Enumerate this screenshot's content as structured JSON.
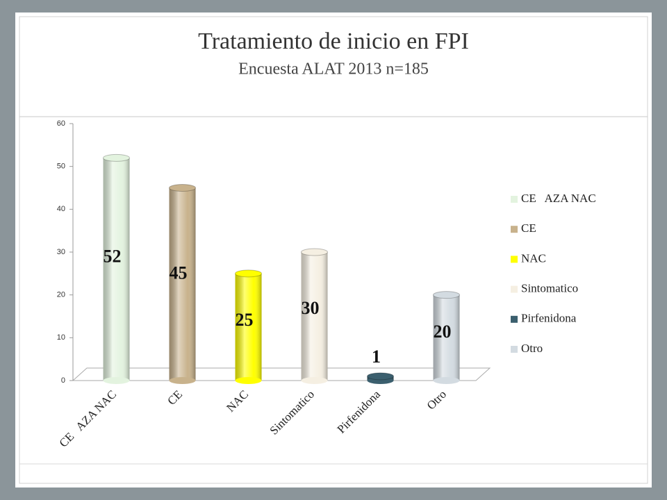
{
  "chart_data": {
    "type": "bar",
    "title": "Tratamiento de inicio en FPI",
    "subtitle": "Encuesta ALAT 2013 n=185",
    "categories": [
      "CE   AZA NAC",
      "CE",
      "NAC",
      "Sintomatico",
      "Pirfenidona",
      "Otro"
    ],
    "values": [
      52,
      45,
      25,
      30,
      1,
      20
    ],
    "colors": [
      "#e3f3df",
      "#c8b28c",
      "#ffff00",
      "#f5efe2",
      "#3b5f6e",
      "#d3dbe1"
    ],
    "ylim": [
      0,
      60
    ],
    "yticks": [
      0,
      10,
      20,
      30,
      40,
      50,
      60
    ],
    "legend": "right"
  }
}
